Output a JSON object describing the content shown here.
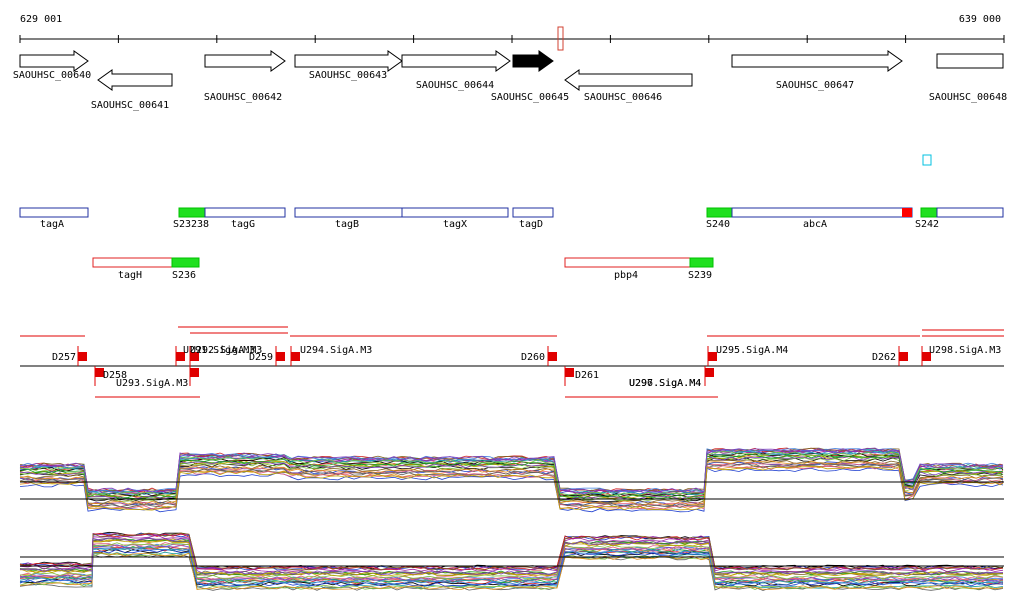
{
  "ruler": {
    "start": "629 001",
    "end": "639 000"
  },
  "genes": [
    "SAOUHSC_00640",
    "SAOUHSC_00641",
    "SAOUHSC_00642",
    "SAOUHSC_00643",
    "SAOUHSC_00644",
    "SAOUHSC_00645",
    "SAOUHSC_00646",
    "SAOUHSC_00647",
    "SAOUHSC_00648"
  ],
  "features": [
    "tagA",
    "S23238",
    "tagG",
    "tagB",
    "tagX",
    "tagD",
    "S240",
    "abcA",
    "S242",
    "tagH",
    "S236",
    "pbp4",
    "S239"
  ],
  "promoters": [
    "D257",
    "D258",
    "U293.SigA.M3",
    "U291.SigA.M3",
    "U292.SigA.M3",
    "D259",
    "U294.SigA.M3",
    "D260",
    "D261",
    "U296.SigA.M4",
    "U297.SigA.M4",
    "U295.SigA.M4",
    "D262",
    "U298.SigA.M3"
  ]
}
